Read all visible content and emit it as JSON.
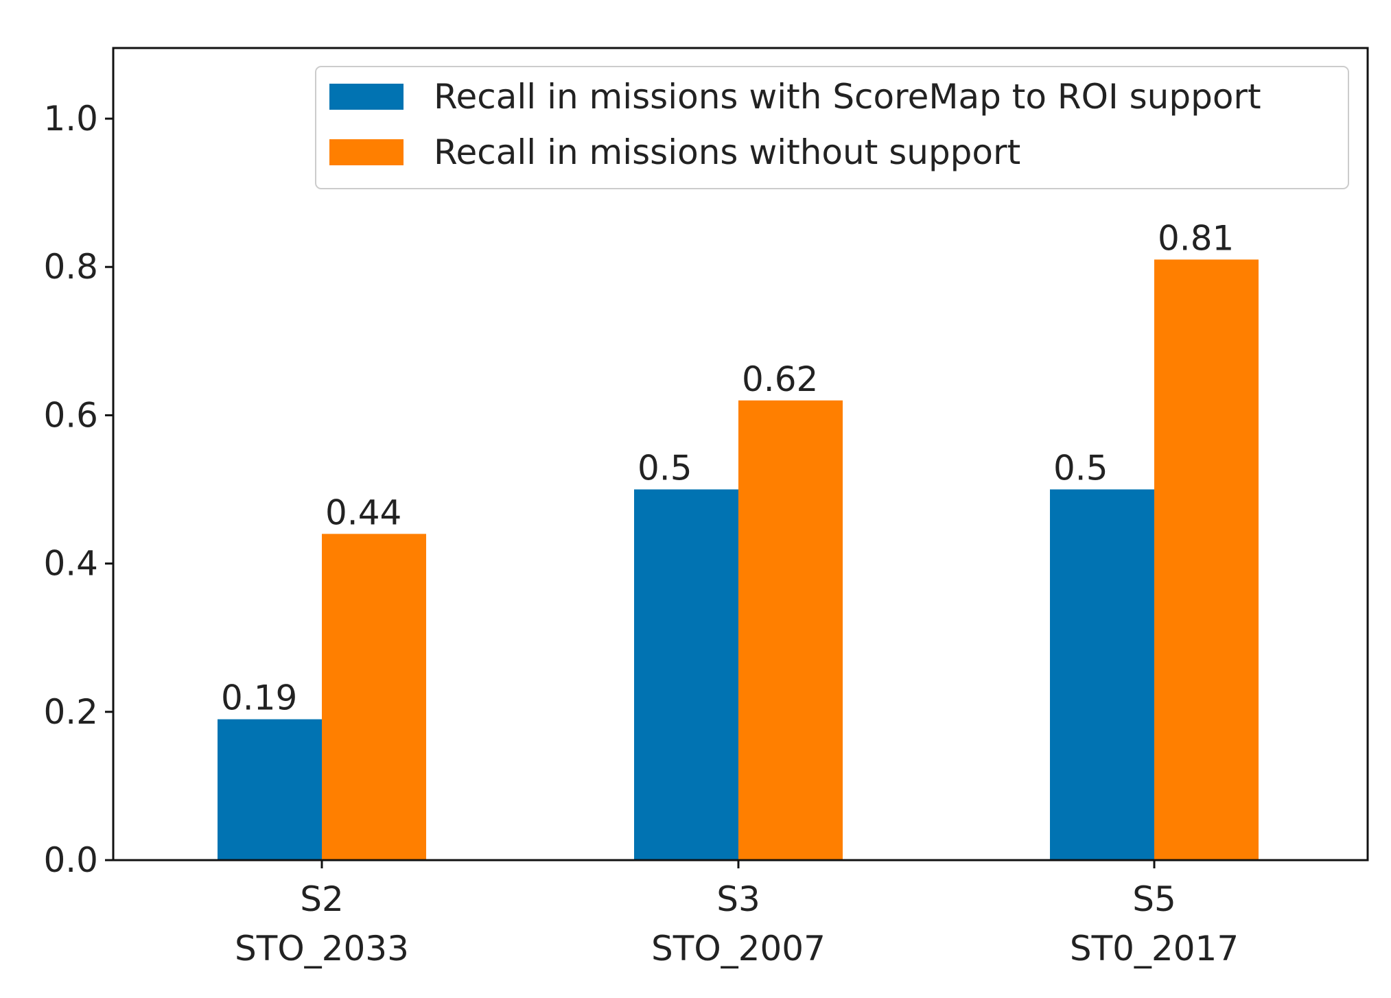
{
  "chart_data": {
    "type": "bar",
    "categories": [
      [
        "S2",
        "STO_2033"
      ],
      [
        "S3",
        "STO_2007"
      ],
      [
        "S5",
        "ST0_2017"
      ]
    ],
    "series": [
      {
        "name": "Recall in missions with ScoreMap to ROI support",
        "values": [
          0.19,
          0.5,
          0.5
        ],
        "labels": [
          "0.19",
          "0.5",
          "0.5"
        ],
        "color": "#0173b2"
      },
      {
        "name": "Recall in missions without support",
        "values": [
          0.44,
          0.62,
          0.81
        ],
        "labels": [
          "0.44",
          "0.62",
          "0.81"
        ],
        "color": "#ff7f00"
      }
    ],
    "yticks": [
      "0.0",
      "0.2",
      "0.4",
      "0.6",
      "0.8",
      "1.0"
    ],
    "ylim": [
      0,
      1.1
    ],
    "legend": "top-right",
    "grid": false
  }
}
